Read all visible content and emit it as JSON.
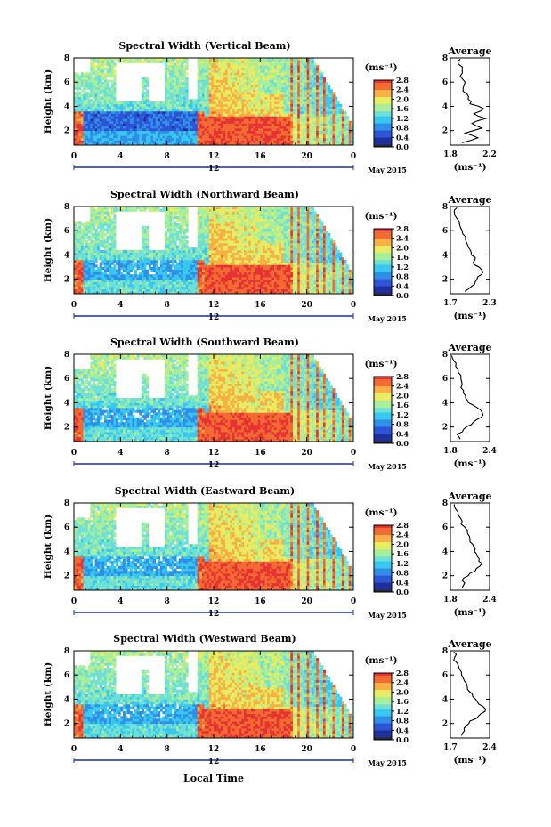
{
  "figure": {
    "x_label": "Local Time",
    "date_label": "May 2015",
    "day_mark": "12",
    "colorbar_unit": "(ms⁻¹)",
    "avg_title": "Average",
    "avg_xlabel": "(ms⁻¹)"
  },
  "colors": {
    "scale": [
      "#2a2a2a",
      "#1f2f9c",
      "#2d54d6",
      "#2f8fe8",
      "#38c7ee",
      "#6fe0d6",
      "#a9ee9a",
      "#e8ec63",
      "#f7b043",
      "#f26b33",
      "#e63232"
    ],
    "missing": "#ffffff"
  },
  "chart_data": [
    {
      "type": "heatmap",
      "title": "Spectral Width (Vertical Beam)",
      "ylabel": "Height (km)",
      "x_ticks": [
        "0",
        "4",
        "8",
        "12",
        "16",
        "20",
        "0"
      ],
      "y_ticks": [
        "2",
        "4",
        "6",
        "8"
      ],
      "xlim": [
        0,
        24
      ],
      "ylim": [
        0.8,
        8
      ],
      "colorbar_ticks": [
        "0.0",
        "0.4",
        "0.8",
        "1.2",
        "1.6",
        "2.0",
        "2.4",
        "2.8"
      ],
      "colorbar_range": [
        0,
        2.8
      ],
      "average": {
        "x_ticks": [
          "1.8",
          "2.2"
        ],
        "xlim": [
          1.8,
          2.2
        ],
        "heights": [
          1.0,
          1.4,
          1.8,
          2.2,
          2.6,
          3.0,
          3.4,
          3.8,
          4.2,
          4.6,
          5.0,
          5.5,
          6.0,
          6.5,
          7.0,
          7.5,
          7.9
        ],
        "values": [
          1.92,
          2.08,
          1.95,
          2.12,
          2.02,
          2.16,
          2.04,
          2.14,
          2.0,
          1.98,
          1.97,
          1.93,
          1.95,
          1.9,
          1.92,
          1.88,
          1.9
        ]
      }
    },
    {
      "type": "heatmap",
      "title": "Spectral Width (Northward Beam)",
      "ylabel": "Height (km)",
      "x_ticks": [
        "0",
        "4",
        "8",
        "12",
        "16",
        "20",
        "0"
      ],
      "y_ticks": [
        "2",
        "4",
        "6",
        "8"
      ],
      "xlim": [
        0,
        24
      ],
      "ylim": [
        0.8,
        8
      ],
      "colorbar_ticks": [
        "0.0",
        "0.4",
        "0.8",
        "1.2",
        "1.6",
        "2.0",
        "2.4",
        "2.8"
      ],
      "colorbar_range": [
        0,
        2.8
      ],
      "average": {
        "x_ticks": [
          "1.7",
          "2.3"
        ],
        "xlim": [
          1.7,
          2.3
        ],
        "heights": [
          1.0,
          1.4,
          1.8,
          2.2,
          2.6,
          3.0,
          3.4,
          3.8,
          4.2,
          4.6,
          5.0,
          5.5,
          6.0,
          6.5,
          7.0,
          7.5,
          7.9
        ],
        "values": [
          1.92,
          2.02,
          2.08,
          2.12,
          2.2,
          2.14,
          2.05,
          2.08,
          2.02,
          1.98,
          1.95,
          1.93,
          1.88,
          1.84,
          1.8,
          1.76,
          1.8
        ]
      }
    },
    {
      "type": "heatmap",
      "title": "Spectral Width (Southward Beam)",
      "ylabel": "Height (km)",
      "x_ticks": [
        "0",
        "4",
        "8",
        "12",
        "16",
        "20",
        "0"
      ],
      "y_ticks": [
        "2",
        "4",
        "6",
        "8"
      ],
      "xlim": [
        0,
        24
      ],
      "ylim": [
        0.8,
        8
      ],
      "colorbar_ticks": [
        "0.0",
        "0.4",
        "0.8",
        "1.2",
        "1.6",
        "2.0",
        "2.4",
        "2.8"
      ],
      "colorbar_range": [
        0,
        2.8
      ],
      "average": {
        "x_ticks": [
          "1.8",
          "2.4"
        ],
        "xlim": [
          1.8,
          2.4
        ],
        "heights": [
          1.0,
          1.4,
          1.8,
          2.2,
          2.6,
          3.0,
          3.4,
          3.8,
          4.2,
          4.6,
          5.0,
          5.5,
          6.0,
          6.5,
          7.0,
          7.5,
          7.9
        ],
        "values": [
          1.95,
          1.9,
          2.0,
          2.12,
          2.2,
          2.3,
          2.26,
          2.15,
          2.06,
          2.03,
          2.0,
          1.98,
          1.96,
          1.92,
          1.88,
          1.85,
          1.82
        ]
      }
    },
    {
      "type": "heatmap",
      "title": "Spectral Width (Eastward Beam)",
      "ylabel": "Height (km)",
      "x_ticks": [
        "0",
        "4",
        "8",
        "12",
        "16",
        "20",
        "0"
      ],
      "y_ticks": [
        "2",
        "4",
        "6",
        "8"
      ],
      "xlim": [
        0,
        24
      ],
      "ylim": [
        0.8,
        8
      ],
      "colorbar_ticks": [
        "0.0",
        "0.4",
        "0.8",
        "1.2",
        "1.6",
        "2.0",
        "2.4",
        "2.8"
      ],
      "colorbar_range": [
        0,
        2.8
      ],
      "average": {
        "x_ticks": [
          "1.8",
          "2.4"
        ],
        "xlim": [
          1.8,
          2.4
        ],
        "heights": [
          1.0,
          1.4,
          1.8,
          2.2,
          2.6,
          3.0,
          3.4,
          3.8,
          4.2,
          4.6,
          5.0,
          5.5,
          6.0,
          6.5,
          7.0,
          7.5,
          7.9
        ],
        "values": [
          1.98,
          2.02,
          2.0,
          2.1,
          2.2,
          2.28,
          2.24,
          2.2,
          2.18,
          2.14,
          2.1,
          2.06,
          2.02,
          1.98,
          1.92,
          1.88,
          1.86
        ]
      }
    },
    {
      "type": "heatmap",
      "title": "Spectral Width (Westward Beam)",
      "ylabel": "Height (km)",
      "x_ticks": [
        "0",
        "4",
        "8",
        "12",
        "16",
        "20",
        "0"
      ],
      "y_ticks": [
        "2",
        "4",
        "6",
        "8"
      ],
      "xlim": [
        0,
        24
      ],
      "ylim": [
        0.8,
        8
      ],
      "colorbar_ticks": [
        "0.0",
        "0.4",
        "0.8",
        "1.2",
        "1.6",
        "2.0",
        "2.4",
        "2.8"
      ],
      "colorbar_range": [
        0,
        2.8
      ],
      "average": {
        "x_ticks": [
          "1.7",
          "2.4"
        ],
        "xlim": [
          1.7,
          2.4
        ],
        "heights": [
          1.0,
          1.4,
          1.8,
          2.2,
          2.6,
          3.0,
          3.4,
          3.8,
          4.2,
          4.6,
          5.0,
          5.5,
          6.0,
          6.5,
          7.0,
          7.5,
          7.9
        ],
        "values": [
          1.9,
          1.95,
          1.98,
          2.05,
          2.2,
          2.32,
          2.28,
          2.18,
          2.1,
          2.05,
          2.0,
          1.95,
          1.9,
          1.86,
          1.82,
          1.78,
          1.76
        ]
      }
    }
  ]
}
